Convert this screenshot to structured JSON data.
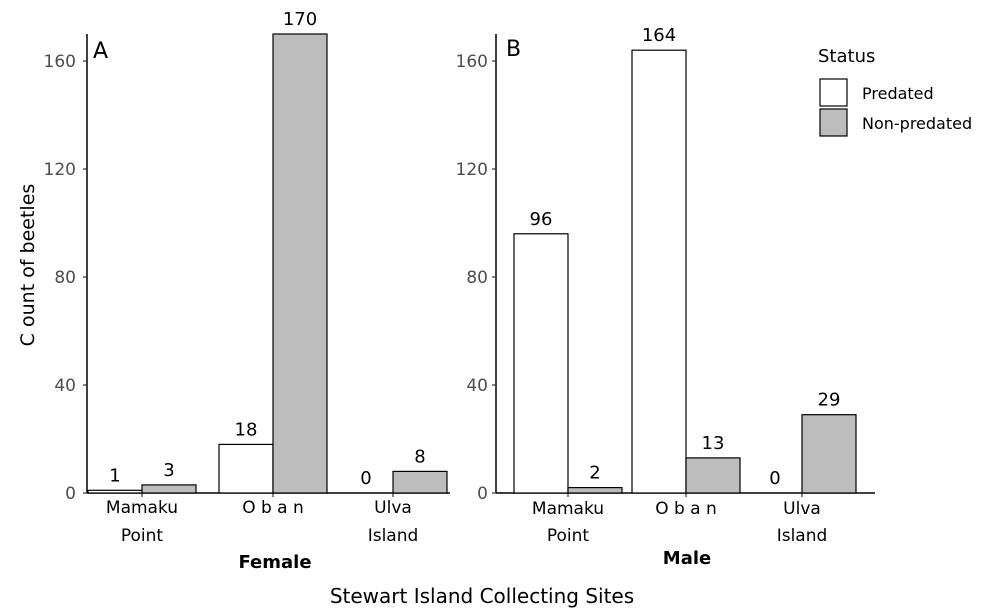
{
  "chart_data": {
    "type": "bar",
    "ylabel": "C ount of beetles",
    "xlabel": "Stewart Island Collecting Sites",
    "ylim": [
      0,
      170
    ],
    "yticks": [
      0,
      40,
      80,
      120,
      160
    ],
    "grid": false,
    "legend": {
      "title": "Status",
      "placement": "top-right",
      "entries": [
        {
          "name": "Predated",
          "color": "#ffffff"
        },
        {
          "name": "Non-predated",
          "color": "#bdbdbd"
        }
      ]
    },
    "panels": [
      {
        "letter": "A",
        "sex_label": "Female",
        "categories": [
          {
            "line1": "Mamaku",
            "line2": "Point"
          },
          {
            "line1": "O b a n",
            "line2": ""
          },
          {
            "line1": "Ulva",
            "line2": "Island"
          }
        ],
        "series": [
          {
            "name": "Predated",
            "values": [
              1,
              18,
              0
            ]
          },
          {
            "name": "Non-predated",
            "values": [
              3,
              170,
              8
            ]
          }
        ]
      },
      {
        "letter": "B",
        "sex_label": "Male",
        "categories": [
          {
            "line1": "Mamaku",
            "line2": "Point"
          },
          {
            "line1": "O b a n",
            "line2": ""
          },
          {
            "line1": "Ulva",
            "line2": "Island"
          }
        ],
        "series": [
          {
            "name": "Predated",
            "values": [
              96,
              164,
              0
            ]
          },
          {
            "name": "Non-predated",
            "values": [
              2,
              13,
              29
            ]
          }
        ]
      }
    ]
  }
}
